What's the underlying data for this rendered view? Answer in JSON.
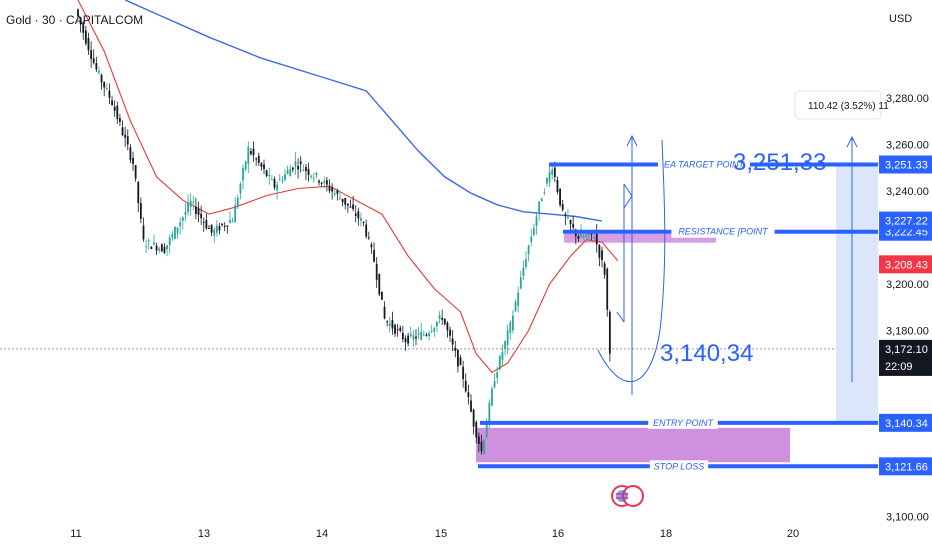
{
  "header": {
    "symbol": "Gold · 30 · CAPITALCOM",
    "currency": "USD"
  },
  "chart_data": {
    "type": "candlestick",
    "price_ticks": [
      "3,280.00",
      "3,260.00",
      "3,240.00",
      "3,200.00",
      "3,180.00",
      "3,100.00"
    ],
    "price_tick_values": [
      3280,
      3260,
      3240,
      3200,
      3180,
      3100
    ],
    "x_tick_labels": [
      "11",
      "13",
      "14",
      "15",
      "16",
      "18",
      "20"
    ],
    "y_range": [
      3090,
      3322
    ],
    "price_anchors": [
      {
        "t": 0,
        "p": 3318
      },
      {
        "t": 8,
        "p": 3292
      },
      {
        "t": 14,
        "p": 3278
      },
      {
        "t": 22,
        "p": 3252
      },
      {
        "t": 26,
        "p": 3218
      },
      {
        "t": 34,
        "p": 3215
      },
      {
        "t": 44,
        "p": 3235
      },
      {
        "t": 52,
        "p": 3222
      },
      {
        "t": 60,
        "p": 3228
      },
      {
        "t": 66,
        "p": 3258
      },
      {
        "t": 76,
        "p": 3242
      },
      {
        "t": 84,
        "p": 3252
      },
      {
        "t": 92,
        "p": 3246
      },
      {
        "t": 102,
        "p": 3236
      },
      {
        "t": 110,
        "p": 3226
      },
      {
        "t": 114,
        "p": 3210
      },
      {
        "t": 118,
        "p": 3185
      },
      {
        "t": 126,
        "p": 3176
      },
      {
        "t": 134,
        "p": 3179
      },
      {
        "t": 140,
        "p": 3186
      },
      {
        "t": 148,
        "p": 3160
      },
      {
        "t": 152,
        "p": 3140
      },
      {
        "t": 155,
        "p": 3128
      },
      {
        "t": 160,
        "p": 3160
      },
      {
        "t": 166,
        "p": 3182
      },
      {
        "t": 172,
        "p": 3212
      },
      {
        "t": 178,
        "p": 3238
      },
      {
        "t": 182,
        "p": 3251
      },
      {
        "t": 186,
        "p": 3230
      },
      {
        "t": 192,
        "p": 3220
      },
      {
        "t": 198,
        "p": 3221
      },
      {
        "t": 202,
        "p": 3205
      },
      {
        "t": 204,
        "p": 3172
      }
    ],
    "ma_red": [
      {
        "t": 0,
        "p": 3322
      },
      {
        "t": 10,
        "p": 3300
      },
      {
        "t": 20,
        "p": 3270
      },
      {
        "t": 30,
        "p": 3246
      },
      {
        "t": 40,
        "p": 3236
      },
      {
        "t": 50,
        "p": 3230
      },
      {
        "t": 60,
        "p": 3233
      },
      {
        "t": 72,
        "p": 3238
      },
      {
        "t": 84,
        "p": 3241
      },
      {
        "t": 96,
        "p": 3242
      },
      {
        "t": 106,
        "p": 3236
      },
      {
        "t": 116,
        "p": 3230
      },
      {
        "t": 126,
        "p": 3212
      },
      {
        "t": 136,
        "p": 3198
      },
      {
        "t": 146,
        "p": 3188
      },
      {
        "t": 152,
        "p": 3170
      },
      {
        "t": 158,
        "p": 3162
      },
      {
        "t": 164,
        "p": 3166
      },
      {
        "t": 172,
        "p": 3180
      },
      {
        "t": 180,
        "p": 3200
      },
      {
        "t": 188,
        "p": 3212
      },
      {
        "t": 194,
        "p": 3219
      },
      {
        "t": 200,
        "p": 3218
      },
      {
        "t": 206,
        "p": 3210
      }
    ],
    "ma_blue": [
      {
        "t": 18,
        "p": 3322
      },
      {
        "t": 30,
        "p": 3316
      },
      {
        "t": 50,
        "p": 3306
      },
      {
        "t": 70,
        "p": 3297
      },
      {
        "t": 90,
        "p": 3290
      },
      {
        "t": 110,
        "p": 3283
      },
      {
        "t": 120,
        "p": 3270
      },
      {
        "t": 130,
        "p": 3257
      },
      {
        "t": 140,
        "p": 3246
      },
      {
        "t": 150,
        "p": 3239
      },
      {
        "t": 160,
        "p": 3234
      },
      {
        "t": 170,
        "p": 3231
      },
      {
        "t": 180,
        "p": 3230
      },
      {
        "t": 190,
        "p": 3229
      },
      {
        "t": 200,
        "p": 3227
      }
    ],
    "current_price_line": 3172.1,
    "levels": [
      {
        "name": "EA TARGET POINT",
        "price": 3251.33,
        "label": "3,251.33"
      },
      {
        "name": "RESISTANCE [POINT",
        "price": 3222.45,
        "label": "3,222.45"
      },
      {
        "name": "ENTRY POINT",
        "price": 3140.34,
        "label": "3,140.34"
      },
      {
        "name": "STOP LOSS",
        "price": 3121.66,
        "label": "3,121.66"
      }
    ],
    "tags": [
      {
        "label": "3,227.22",
        "price": 3227.22,
        "color": "#2962ff"
      },
      {
        "label": "3,208.43",
        "price": 3208.43,
        "color": "#f23645"
      }
    ],
    "current_tag": {
      "price_label": "3,172.10",
      "countdown": "22:09",
      "price": 3172.1
    },
    "annotations": {
      "target_text": "3,251,33",
      "entry_text": "3,140,34",
      "measure": "110.42 (3.52%) 11"
    },
    "colors": {
      "up": "#26a69a",
      "down": "#131722",
      "ma_red": "#e53935",
      "ma_blue": "#3d6be6",
      "level": "#2962ff",
      "zone": "#c77dd8",
      "measure": "#dbe6fb"
    }
  }
}
